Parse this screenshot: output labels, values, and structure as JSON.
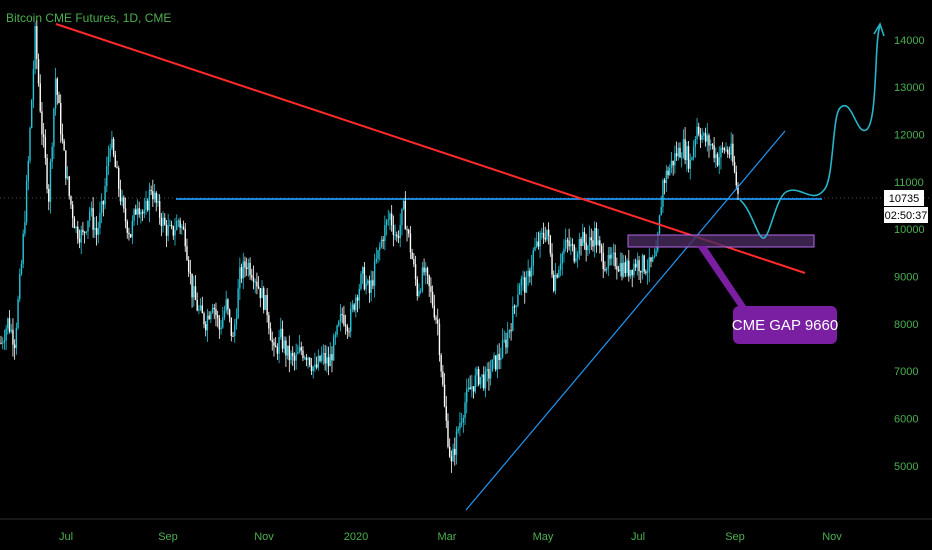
{
  "chart_data": {
    "type": "candlestick",
    "title": "Bitcoin CME Futures, 1D, CME",
    "y_axis": {
      "ticks": [
        5000,
        6000,
        7000,
        8000,
        9000,
        10000,
        11000,
        12000,
        13000,
        14000
      ],
      "range": [
        4000,
        14400
      ],
      "position": "right"
    },
    "x_axis": {
      "ticks": [
        "Jul",
        "Sep",
        "Nov",
        "2020",
        "Mar",
        "May",
        "Jul",
        "Sep",
        "Nov"
      ]
    },
    "current_price": "10735",
    "countdown": "02:50:37",
    "horizontal_level": 10735,
    "gap_zone": {
      "low": 9700,
      "high": 9920
    },
    "annotation": "CME GAP 9660",
    "price_path": [
      [
        0,
        7600
      ],
      [
        4,
        8050
      ],
      [
        8,
        7650
      ],
      [
        12,
        9250
      ],
      [
        16,
        11400
      ],
      [
        20,
        14100
      ],
      [
        24,
        12100
      ],
      [
        28,
        10700
      ],
      [
        32,
        13200
      ],
      [
        36,
        11800
      ],
      [
        40,
        10700
      ],
      [
        44,
        10000
      ],
      [
        48,
        9850
      ],
      [
        52,
        10400
      ],
      [
        56,
        9900
      ],
      [
        60,
        10550
      ],
      [
        64,
        11900
      ],
      [
        68,
        11100
      ],
      [
        72,
        10300
      ],
      [
        76,
        9900
      ],
      [
        80,
        10600
      ],
      [
        84,
        10250
      ],
      [
        88,
        10900
      ],
      [
        92,
        10400
      ],
      [
        96,
        10050
      ],
      [
        100,
        9900
      ],
      [
        104,
        10200
      ],
      [
        108,
        9850
      ],
      [
        112,
        8700
      ],
      [
        116,
        8250
      ],
      [
        120,
        8050
      ],
      [
        124,
        8500
      ],
      [
        128,
        7900
      ],
      [
        132,
        8400
      ],
      [
        136,
        7650
      ],
      [
        140,
        9000
      ],
      [
        144,
        9300
      ],
      [
        148,
        9100
      ],
      [
        152,
        8700
      ],
      [
        156,
        8300
      ],
      [
        160,
        7350
      ],
      [
        164,
        7700
      ],
      [
        168,
        7350
      ],
      [
        172,
        7200
      ],
      [
        176,
        7450
      ],
      [
        180,
        7350
      ],
      [
        184,
        7000
      ],
      [
        188,
        7300
      ],
      [
        192,
        7150
      ],
      [
        196,
        7650
      ],
      [
        200,
        8200
      ],
      [
        204,
        8000
      ],
      [
        208,
        8600
      ],
      [
        212,
        9000
      ],
      [
        216,
        8650
      ],
      [
        220,
        9300
      ],
      [
        224,
        9900
      ],
      [
        228,
        10300
      ],
      [
        232,
        9800
      ],
      [
        236,
        10400
      ],
      [
        240,
        9600
      ],
      [
        244,
        8700
      ],
      [
        248,
        9100
      ],
      [
        252,
        8600
      ],
      [
        256,
        8000
      ],
      [
        260,
        6200
      ],
      [
        264,
        5000
      ],
      [
        268,
        5800
      ],
      [
        272,
        6350
      ],
      [
        276,
        6700
      ],
      [
        280,
        6900
      ],
      [
        284,
        6800
      ],
      [
        288,
        7100
      ],
      [
        292,
        7300
      ],
      [
        296,
        7650
      ],
      [
        300,
        8200
      ],
      [
        304,
        8900
      ],
      [
        308,
        8800
      ],
      [
        312,
        9500
      ],
      [
        316,
        9750
      ],
      [
        320,
        10000
      ],
      [
        324,
        8900
      ],
      [
        328,
        9400
      ],
      [
        332,
        9700
      ],
      [
        336,
        9500
      ],
      [
        340,
        9800
      ],
      [
        344,
        9650
      ],
      [
        348,
        9900
      ],
      [
        352,
        9400
      ],
      [
        356,
        9250
      ],
      [
        360,
        9350
      ],
      [
        364,
        9200
      ],
      [
        368,
        9150
      ],
      [
        372,
        9300
      ],
      [
        376,
        9250
      ],
      [
        380,
        9200
      ],
      [
        384,
        9350
      ],
      [
        388,
        11000
      ],
      [
        392,
        11300
      ],
      [
        396,
        11600
      ],
      [
        400,
        11750
      ],
      [
        404,
        11400
      ],
      [
        408,
        12200
      ],
      [
        412,
        11900
      ],
      [
        416,
        11800
      ],
      [
        420,
        11500
      ],
      [
        424,
        11700
      ],
      [
        428,
        11600
      ],
      [
        432,
        10735
      ]
    ]
  },
  "callout": {
    "label": "CME GAP 9660"
  }
}
